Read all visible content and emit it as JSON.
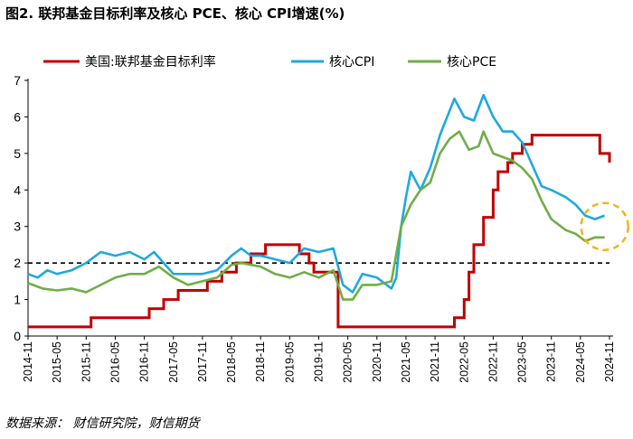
{
  "title": "图2. 联邦基金目标利率及核心 PCE、核心 CPI增速(%)",
  "source": "数据来源： 财信研究院，财信期货",
  "chart_data": {
    "type": "line",
    "title": "图2. 联邦基金目标利率及核心 PCE、核心 CPI增速(%)",
    "xlabel": "",
    "ylabel": "",
    "ylim": [
      0,
      7
    ],
    "yticks": [
      "0",
      "1",
      "2",
      "3",
      "4",
      "5",
      "6",
      "7"
    ],
    "x": [
      "2014-11",
      "2015-05",
      "2015-11",
      "2016-05",
      "2016-11",
      "2017-05",
      "2017-11",
      "2018-05",
      "2018-11",
      "2019-05",
      "2019-11",
      "2020-05",
      "2020-11",
      "2021-05",
      "2021-11",
      "2022-05",
      "2022-11",
      "2023-05",
      "2023-11",
      "2024-05",
      "2024-11"
    ],
    "reference_line": {
      "y": 2,
      "style": "dashed",
      "color": "#000000"
    },
    "highlight_circle": {
      "x": "2024-10",
      "y": 3.0,
      "color": "#f5b21b"
    },
    "legend_position": "top",
    "series": [
      {
        "name": "美国:联邦基金目标利率",
        "color": "#c00000",
        "step": true,
        "points": [
          [
            "2014-11",
            0.25
          ],
          [
            "2015-12",
            0.25
          ],
          [
            "2015-12",
            0.5
          ],
          [
            "2016-12",
            0.5
          ],
          [
            "2016-12",
            0.75
          ],
          [
            "2017-03",
            0.75
          ],
          [
            "2017-03",
            1.0
          ],
          [
            "2017-06",
            1.0
          ],
          [
            "2017-06",
            1.25
          ],
          [
            "2017-12",
            1.25
          ],
          [
            "2017-12",
            1.5
          ],
          [
            "2018-03",
            1.5
          ],
          [
            "2018-03",
            1.75
          ],
          [
            "2018-06",
            1.75
          ],
          [
            "2018-06",
            2.0
          ],
          [
            "2018-09",
            2.0
          ],
          [
            "2018-09",
            2.25
          ],
          [
            "2018-12",
            2.25
          ],
          [
            "2018-12",
            2.5
          ],
          [
            "2019-07",
            2.5
          ],
          [
            "2019-07",
            2.25
          ],
          [
            "2019-09",
            2.25
          ],
          [
            "2019-09",
            2.0
          ],
          [
            "2019-10",
            2.0
          ],
          [
            "2019-10",
            1.75
          ],
          [
            "2020-03",
            1.75
          ],
          [
            "2020-03",
            0.25
          ],
          [
            "2022-03",
            0.25
          ],
          [
            "2022-03",
            0.5
          ],
          [
            "2022-05",
            0.5
          ],
          [
            "2022-05",
            1.0
          ],
          [
            "2022-06",
            1.0
          ],
          [
            "2022-06",
            1.75
          ],
          [
            "2022-07",
            1.75
          ],
          [
            "2022-07",
            2.5
          ],
          [
            "2022-09",
            2.5
          ],
          [
            "2022-09",
            3.25
          ],
          [
            "2022-11",
            3.25
          ],
          [
            "2022-11",
            4.0
          ],
          [
            "2022-12",
            4.0
          ],
          [
            "2022-12",
            4.5
          ],
          [
            "2023-02",
            4.5
          ],
          [
            "2023-02",
            4.75
          ],
          [
            "2023-03",
            4.75
          ],
          [
            "2023-03",
            5.0
          ],
          [
            "2023-05",
            5.0
          ],
          [
            "2023-05",
            5.25
          ],
          [
            "2023-07",
            5.25
          ],
          [
            "2023-07",
            5.5
          ],
          [
            "2024-09",
            5.5
          ],
          [
            "2024-09",
            5.0
          ],
          [
            "2024-11",
            5.0
          ],
          [
            "2024-11",
            4.75
          ]
        ]
      },
      {
        "name": "核心CPI",
        "color": "#1fa8e0",
        "points": [
          [
            "2014-11",
            1.7
          ],
          [
            "2015-01",
            1.6
          ],
          [
            "2015-03",
            1.8
          ],
          [
            "2015-05",
            1.7
          ],
          [
            "2015-08",
            1.8
          ],
          [
            "2015-11",
            2.0
          ],
          [
            "2016-02",
            2.3
          ],
          [
            "2016-05",
            2.2
          ],
          [
            "2016-08",
            2.3
          ],
          [
            "2016-11",
            2.1
          ],
          [
            "2017-01",
            2.3
          ],
          [
            "2017-03",
            2.0
          ],
          [
            "2017-05",
            1.7
          ],
          [
            "2017-08",
            1.7
          ],
          [
            "2017-11",
            1.7
          ],
          [
            "2018-02",
            1.8
          ],
          [
            "2018-05",
            2.2
          ],
          [
            "2018-07",
            2.4
          ],
          [
            "2018-09",
            2.2
          ],
          [
            "2018-11",
            2.2
          ],
          [
            "2019-02",
            2.1
          ],
          [
            "2019-05",
            2.0
          ],
          [
            "2019-08",
            2.4
          ],
          [
            "2019-11",
            2.3
          ],
          [
            "2020-02",
            2.4
          ],
          [
            "2020-04",
            1.4
          ],
          [
            "2020-06",
            1.2
          ],
          [
            "2020-08",
            1.7
          ],
          [
            "2020-11",
            1.6
          ],
          [
            "2021-02",
            1.3
          ],
          [
            "2021-03",
            1.6
          ],
          [
            "2021-04",
            3.0
          ],
          [
            "2021-05",
            3.8
          ],
          [
            "2021-06",
            4.5
          ],
          [
            "2021-08",
            4.0
          ],
          [
            "2021-10",
            4.6
          ],
          [
            "2021-12",
            5.5
          ],
          [
            "2022-03",
            6.5
          ],
          [
            "2022-05",
            6.0
          ],
          [
            "2022-07",
            5.9
          ],
          [
            "2022-09",
            6.6
          ],
          [
            "2022-11",
            6.0
          ],
          [
            "2023-01",
            5.6
          ],
          [
            "2023-03",
            5.6
          ],
          [
            "2023-05",
            5.3
          ],
          [
            "2023-07",
            4.7
          ],
          [
            "2023-09",
            4.1
          ],
          [
            "2023-11",
            4.0
          ],
          [
            "2024-02",
            3.8
          ],
          [
            "2024-04",
            3.6
          ],
          [
            "2024-06",
            3.3
          ],
          [
            "2024-08",
            3.2
          ],
          [
            "2024-10",
            3.3
          ]
        ]
      },
      {
        "name": "核心PCE",
        "color": "#70ad47",
        "points": [
          [
            "2014-11",
            1.45
          ],
          [
            "2015-02",
            1.3
          ],
          [
            "2015-05",
            1.25
          ],
          [
            "2015-08",
            1.3
          ],
          [
            "2015-11",
            1.2
          ],
          [
            "2016-02",
            1.4
          ],
          [
            "2016-05",
            1.6
          ],
          [
            "2016-08",
            1.7
          ],
          [
            "2016-11",
            1.7
          ],
          [
            "2017-02",
            1.9
          ],
          [
            "2017-05",
            1.6
          ],
          [
            "2017-08",
            1.4
          ],
          [
            "2017-11",
            1.5
          ],
          [
            "2018-02",
            1.6
          ],
          [
            "2018-05",
            1.95
          ],
          [
            "2018-07",
            2.0
          ],
          [
            "2018-09",
            1.95
          ],
          [
            "2018-11",
            1.9
          ],
          [
            "2019-02",
            1.7
          ],
          [
            "2019-05",
            1.6
          ],
          [
            "2019-08",
            1.75
          ],
          [
            "2019-11",
            1.6
          ],
          [
            "2020-02",
            1.8
          ],
          [
            "2020-04",
            1.0
          ],
          [
            "2020-06",
            1.0
          ],
          [
            "2020-08",
            1.4
          ],
          [
            "2020-11",
            1.4
          ],
          [
            "2021-02",
            1.5
          ],
          [
            "2021-04",
            3.0
          ],
          [
            "2021-06",
            3.6
          ],
          [
            "2021-08",
            4.0
          ],
          [
            "2021-10",
            4.2
          ],
          [
            "2021-12",
            5.0
          ],
          [
            "2022-02",
            5.4
          ],
          [
            "2022-04",
            5.6
          ],
          [
            "2022-06",
            5.1
          ],
          [
            "2022-08",
            5.2
          ],
          [
            "2022-09",
            5.6
          ],
          [
            "2022-11",
            5.0
          ],
          [
            "2023-01",
            4.9
          ],
          [
            "2023-03",
            4.8
          ],
          [
            "2023-05",
            4.6
          ],
          [
            "2023-07",
            4.3
          ],
          [
            "2023-09",
            3.7
          ],
          [
            "2023-11",
            3.2
          ],
          [
            "2024-02",
            2.9
          ],
          [
            "2024-04",
            2.8
          ],
          [
            "2024-06",
            2.6
          ],
          [
            "2024-08",
            2.7
          ],
          [
            "2024-10",
            2.7
          ]
        ]
      }
    ]
  }
}
